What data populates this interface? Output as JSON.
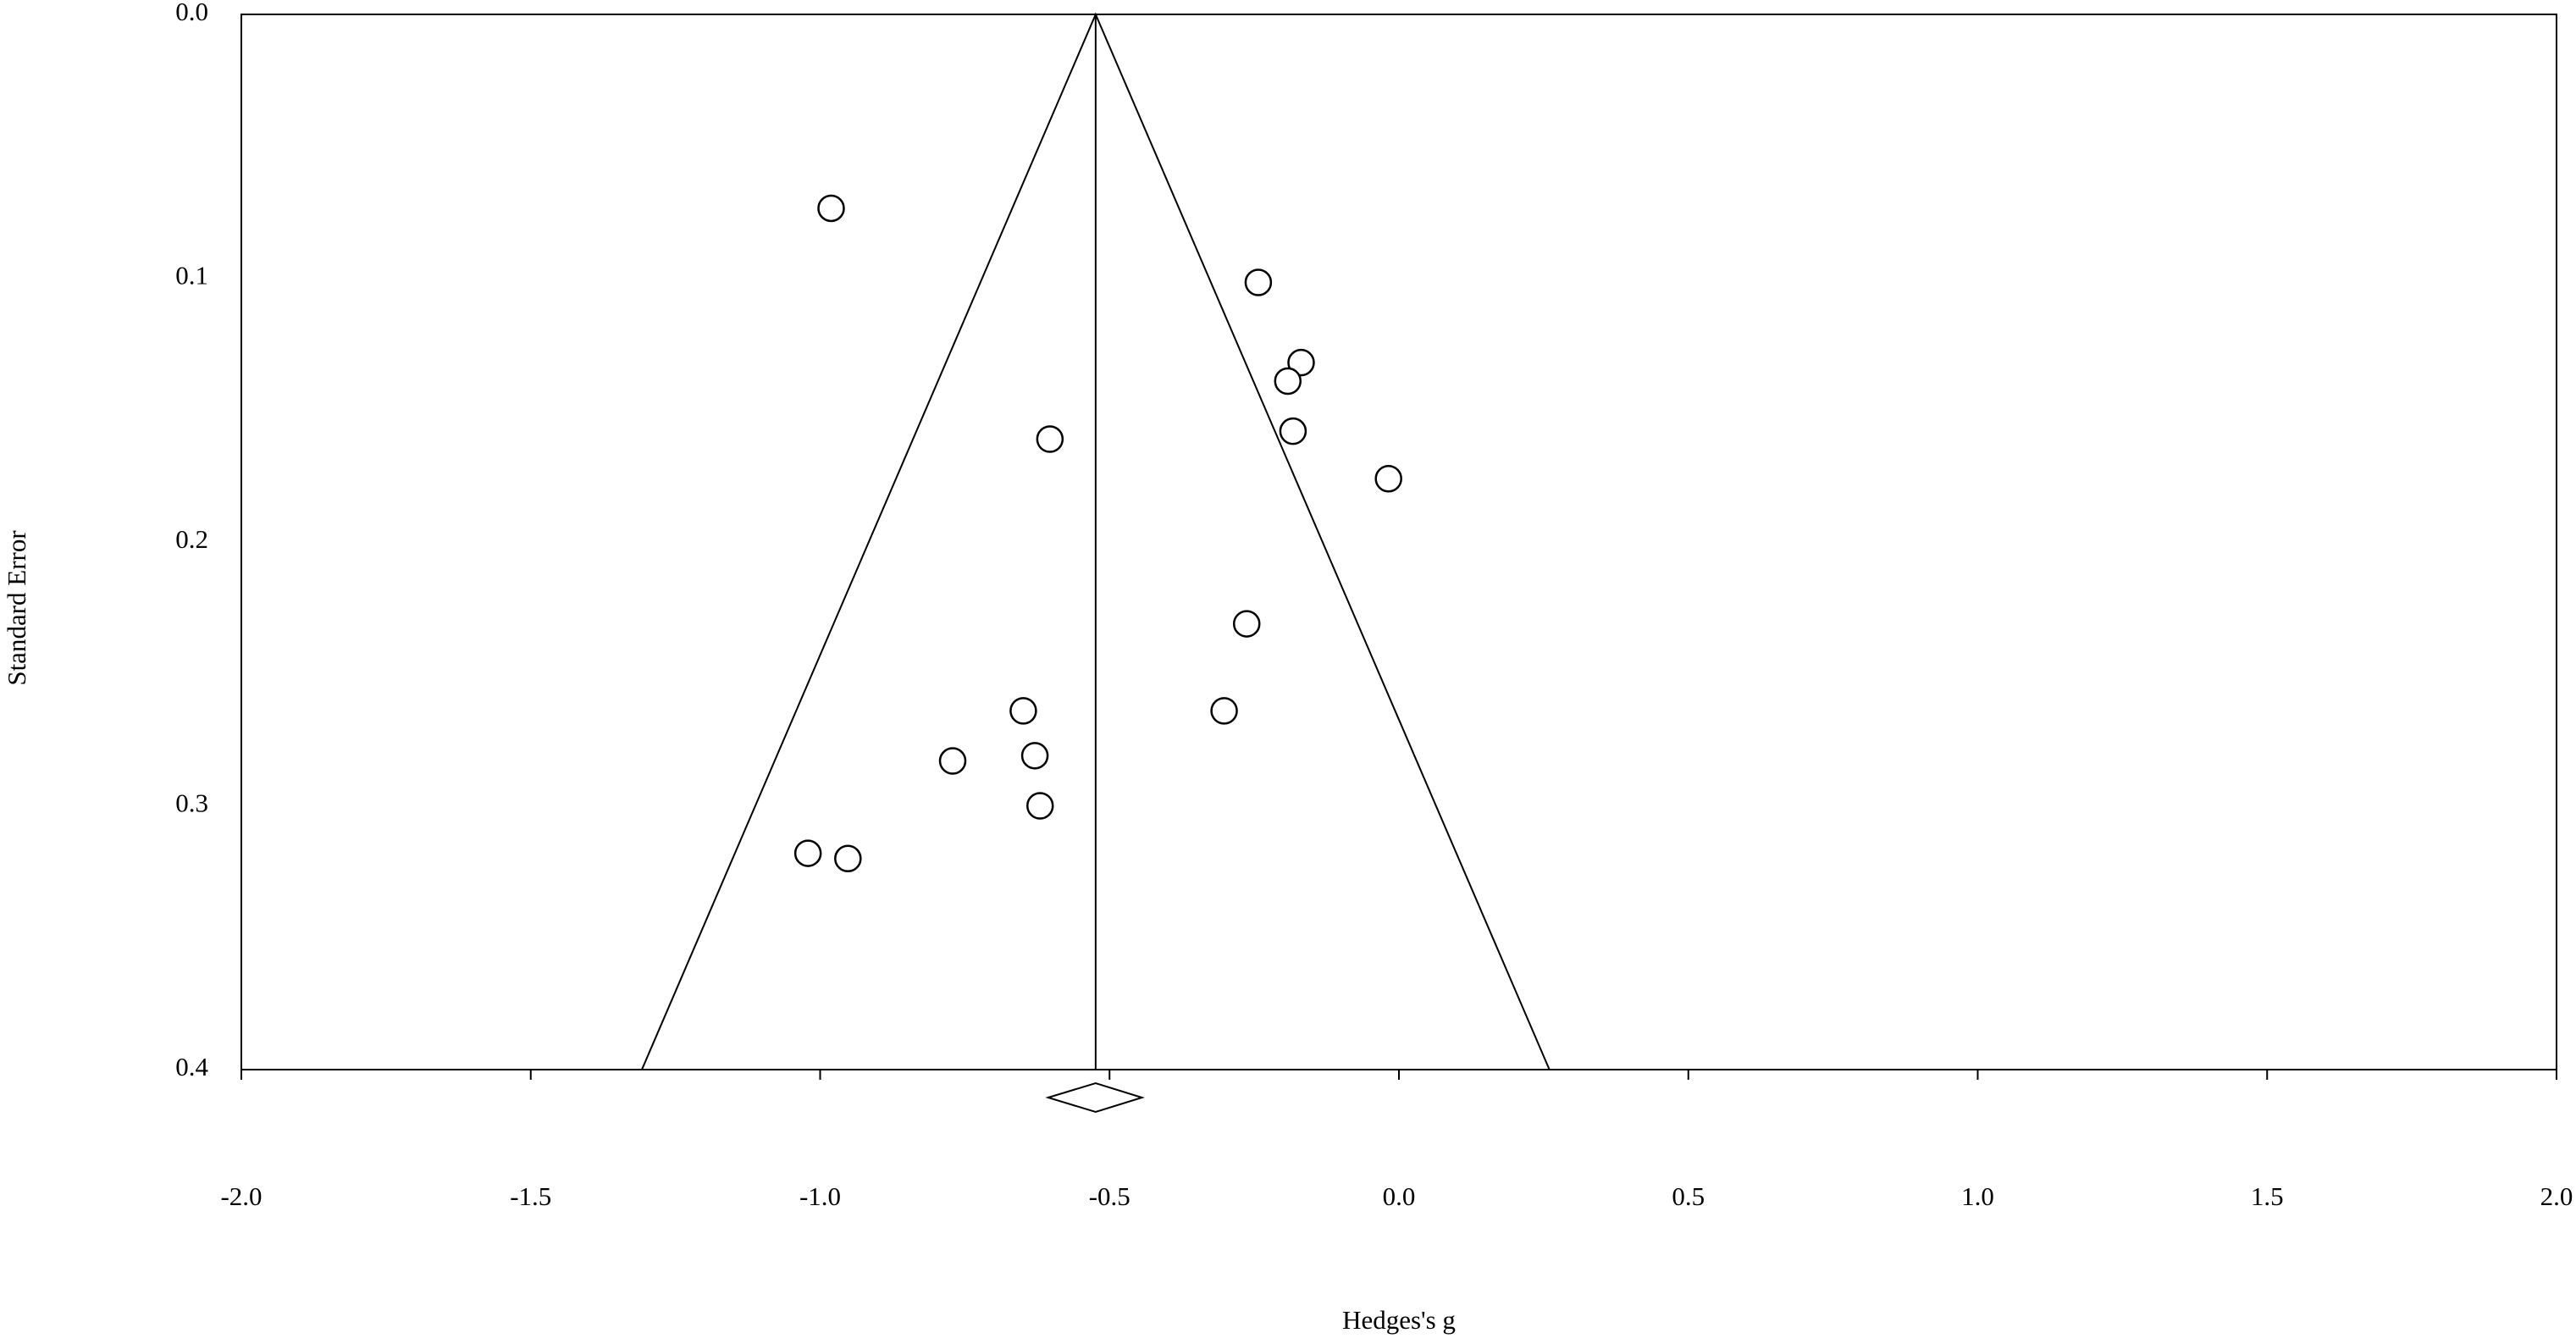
{
  "chart_data": {
    "type": "funnel",
    "x_label": "Hedges's g",
    "y_label": "Standard Error",
    "x": [
      -0.981,
      -0.243,
      -0.169,
      -0.192,
      -0.183,
      -0.018,
      -0.603,
      -0.263,
      -0.302,
      -0.649,
      -0.629,
      -0.771,
      -0.62,
      -1.021,
      -0.952
    ],
    "values": [
      0.0735,
      0.1016,
      0.132,
      0.139,
      0.158,
      0.176,
      0.161,
      0.231,
      0.264,
      0.264,
      0.281,
      0.283,
      0.3,
      0.318,
      0.32
    ],
    "pooled": {
      "value": -0.524,
      "ci": [
        -0.606,
        -0.444
      ]
    },
    "xlim": [
      -2.0,
      2.0
    ],
    "xticks": [
      {
        "value": -2.0,
        "label": "-2.0"
      },
      -1.5,
      {
        "value": -1.0,
        "label": "-1.0"
      },
      -0.5,
      {
        "value": 0,
        "label": "0.0"
      },
      0.5,
      {
        "value": 1.0,
        "label": "1.0"
      },
      1.5,
      {
        "value": 2.0,
        "label": "2.0"
      }
    ],
    "ylim": [
      0,
      0.4
    ],
    "y_inverted": true,
    "yticks": [
      {
        "value": 0,
        "label": "0.0"
      },
      0.1,
      0.2,
      0.3,
      0.4
    ],
    "color": "#000000"
  }
}
